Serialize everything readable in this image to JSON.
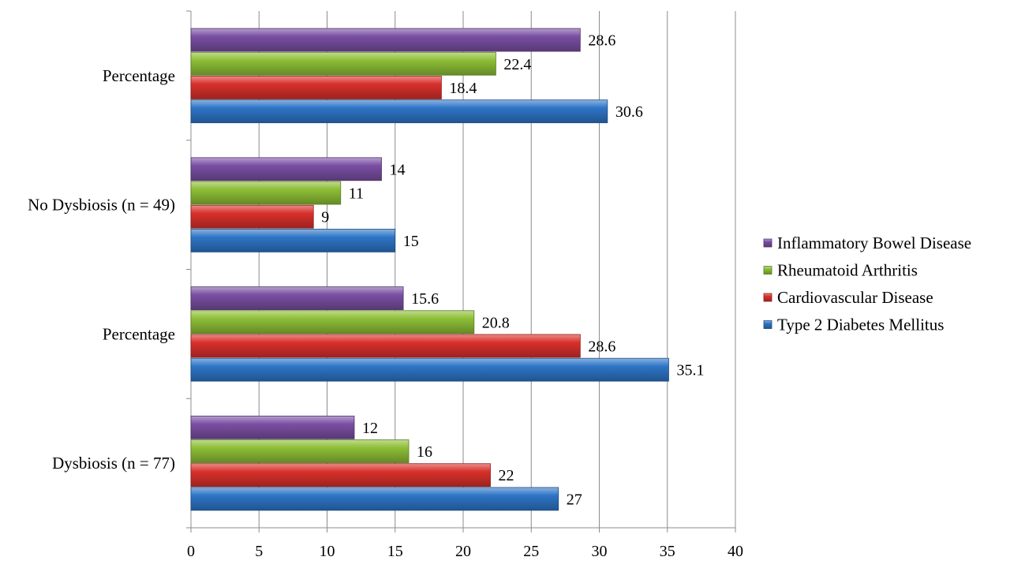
{
  "chart_data": {
    "type": "bar",
    "orientation": "horizontal",
    "categories": [
      "Dysbiosis (n = 77)",
      "Percentage",
      "No Dysbiosis (n = 49)",
      "Percentage"
    ],
    "series": [
      {
        "name": "Type 2 Diabetes Mellitus",
        "color": "#2E75C6",
        "values": [
          27,
          35.1,
          15,
          30.6
        ],
        "labels": [
          "27",
          "35.1",
          "15",
          "30.6"
        ]
      },
      {
        "name": "Cardiovascular Disease",
        "color": "#D9302B",
        "values": [
          22,
          28.6,
          9,
          18.4
        ],
        "labels": [
          "22",
          "28.6",
          "9",
          "18.4"
        ]
      },
      {
        "name": "Rheumatoid Arthritis",
        "color": "#8DBE36",
        "values": [
          16,
          20.8,
          11,
          22.4
        ],
        "labels": [
          "16",
          "20.8",
          "11",
          "22.4"
        ]
      },
      {
        "name": "Inflammatory Bowel Disease",
        "color": "#7A4FA3",
        "values": [
          12,
          15.6,
          14,
          28.6
        ],
        "labels": [
          "12",
          "15.6",
          "14",
          "28.6"
        ]
      }
    ],
    "xlim": [
      0,
      40
    ],
    "xticks": [
      "0",
      "5",
      "10",
      "15",
      "20",
      "25",
      "30",
      "35",
      "40"
    ],
    "grid": "vertical",
    "legend_position": "right",
    "legend_order": [
      "Inflammatory Bowel Disease",
      "Rheumatoid Arthritis",
      "Cardiovascular Disease",
      "Type 2 Diabetes Mellitus"
    ],
    "title": "",
    "xlabel": "",
    "ylabel": ""
  }
}
